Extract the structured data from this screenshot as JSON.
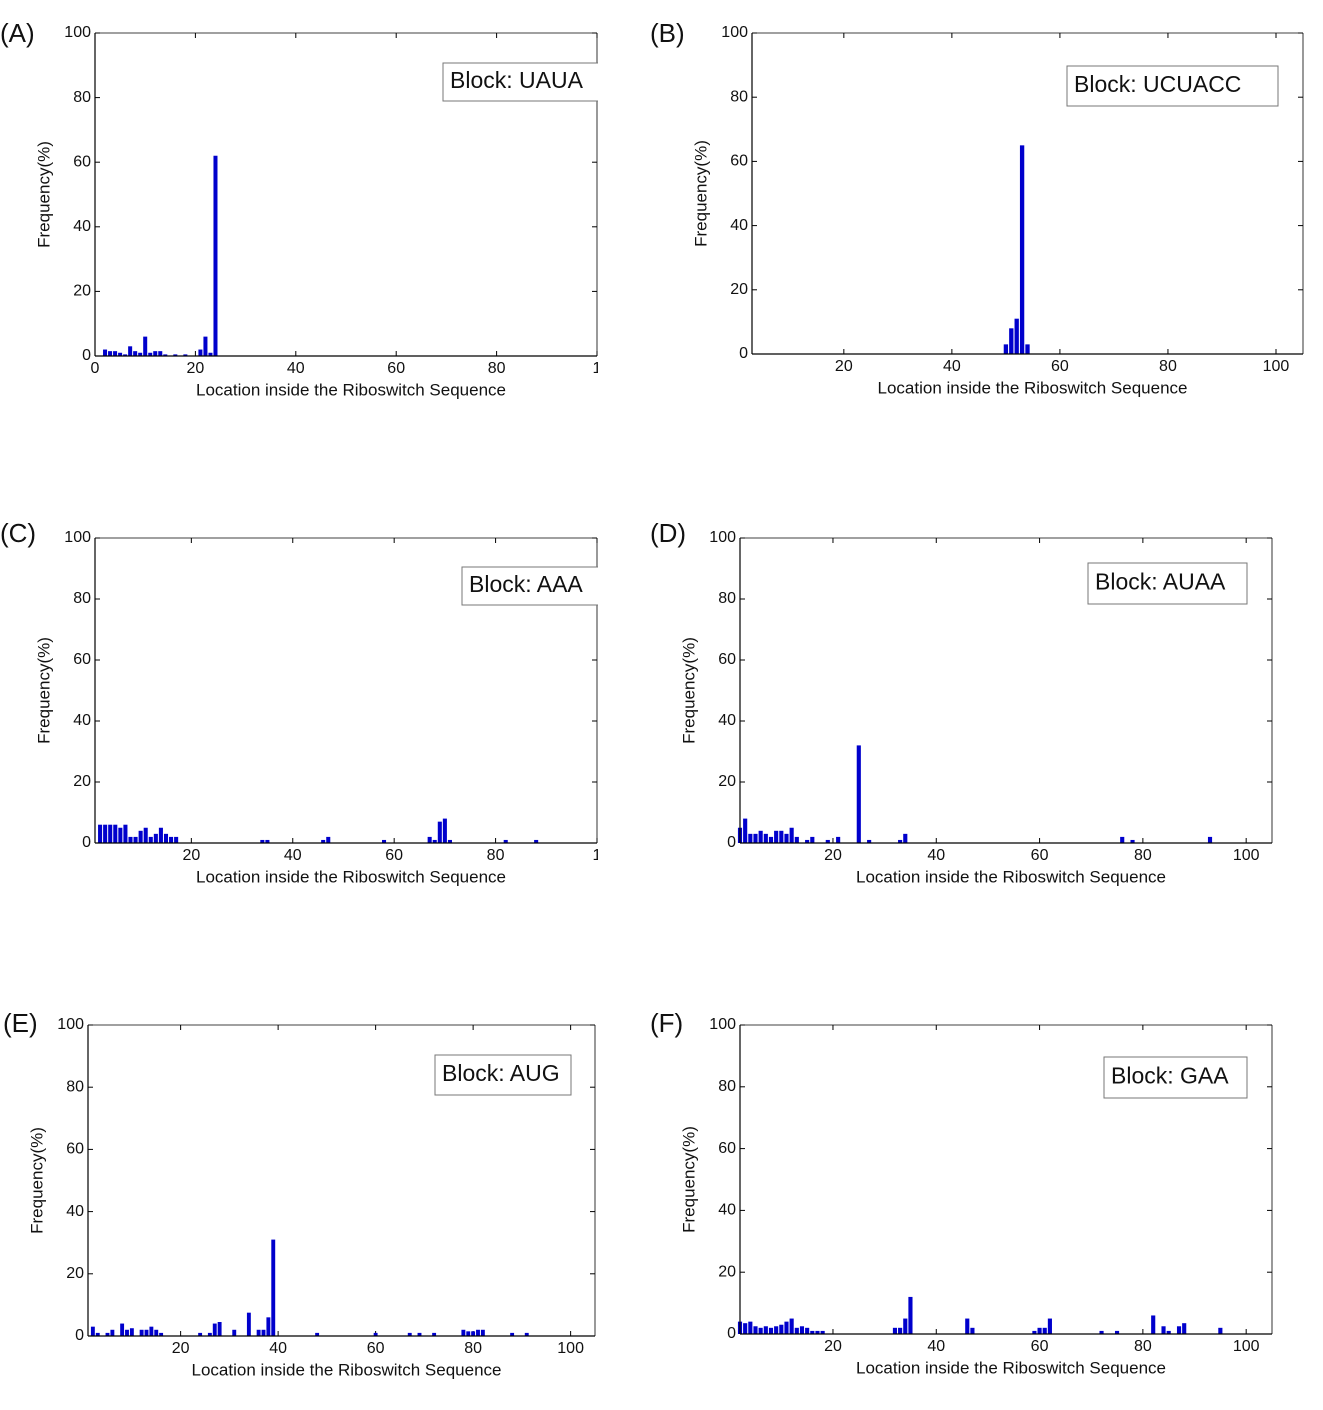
{
  "chart_data": [
    {
      "type": "bar",
      "panel_label": "(A)",
      "annotation": "Block: UAUA",
      "xlabel": "Location inside the Riboswitch Sequence",
      "ylabel": "Frequency(%)",
      "color": "#0000cc",
      "xlim": [
        0,
        100
      ],
      "xticks": [
        0,
        20,
        40,
        60,
        80,
        {
          "value": 100,
          "label": "1"
        }
      ],
      "ylim": [
        0,
        100
      ],
      "yticks": [
        0,
        20,
        40,
        60,
        80,
        100
      ],
      "x": [
        2,
        3,
        4,
        5,
        6,
        7,
        8,
        9,
        10,
        11,
        12,
        13,
        14,
        16,
        18,
        21,
        22,
        23,
        24
      ],
      "values": [
        2,
        1.5,
        1.5,
        1,
        0.5,
        3,
        1.5,
        1,
        6,
        1,
        1.5,
        1.5,
        0.5,
        0.5,
        0.5,
        2,
        6,
        1,
        62
      ]
    },
    {
      "type": "bar",
      "panel_label": "(B)",
      "annotation": "Block: UCUACC",
      "xlabel": "Location inside the Riboswitch Sequence",
      "ylabel": "Frequency(%)",
      "color": "#0000cc",
      "xlim": [
        3,
        105
      ],
      "xticks": [
        20,
        40,
        60,
        80,
        100
      ],
      "ylim": [
        0,
        100
      ],
      "yticks": [
        0,
        20,
        40,
        60,
        80,
        100
      ],
      "x": [
        50,
        51,
        52,
        53,
        54
      ],
      "values": [
        3,
        8,
        11,
        65,
        3
      ]
    },
    {
      "type": "bar",
      "panel_label": "(C)",
      "annotation": "Block: AAA",
      "xlabel": "Location inside the Riboswitch Sequence",
      "ylabel": "Frequency(%)",
      "color": "#0000cc",
      "xlim": [
        1,
        100
      ],
      "xticks": [
        20,
        40,
        60,
        80,
        {
          "value": 100,
          "label": "1"
        }
      ],
      "ylim": [
        0,
        100
      ],
      "yticks": [
        0,
        20,
        40,
        60,
        80,
        100
      ],
      "x": [
        2,
        3,
        4,
        5,
        6,
        7,
        8,
        9,
        10,
        11,
        12,
        13,
        14,
        15,
        16,
        17,
        34,
        35,
        46,
        47,
        58,
        67,
        68,
        69,
        70,
        71,
        82,
        88
      ],
      "values": [
        6,
        6,
        6,
        6,
        5,
        6,
        2,
        2,
        4,
        5,
        2,
        3,
        5,
        3,
        2,
        2,
        1,
        1,
        1,
        2,
        1,
        2,
        1,
        7,
        8,
        1,
        1,
        1
      ]
    },
    {
      "type": "bar",
      "panel_label": "(D)",
      "annotation": "Block: AUAA",
      "xlabel": "Location inside the Riboswitch Sequence",
      "ylabel": "Frequency(%)",
      "color": "#0000cc",
      "xlim": [
        2,
        105
      ],
      "xticks": [
        20,
        40,
        60,
        80,
        100
      ],
      "ylim": [
        0,
        100
      ],
      "yticks": [
        0,
        20,
        40,
        60,
        80,
        100
      ],
      "x": [
        2,
        3,
        4,
        5,
        6,
        7,
        8,
        9,
        10,
        11,
        12,
        13,
        15,
        16,
        19,
        21,
        25,
        27,
        33,
        34,
        76,
        78,
        93
      ],
      "values": [
        5,
        8,
        3,
        3,
        4,
        3,
        2,
        4,
        4,
        3,
        5,
        2,
        1,
        2,
        1,
        2,
        32,
        1,
        1,
        3,
        2,
        1,
        2
      ]
    },
    {
      "type": "bar",
      "panel_label": "(E)",
      "annotation": "Block: AUG",
      "xlabel": "Location inside the Riboswitch Sequence",
      "ylabel": "Frequency(%)",
      "color": "#0000cc",
      "xlim": [
        1,
        105
      ],
      "xticks": [
        20,
        40,
        60,
        80,
        100
      ],
      "ylim": [
        0,
        100
      ],
      "yticks": [
        0,
        20,
        40,
        60,
        80,
        100
      ],
      "x": [
        2,
        3,
        5,
        6,
        8,
        9,
        10,
        12,
        13,
        14,
        15,
        16,
        24,
        26,
        27,
        28,
        31,
        34,
        36,
        37,
        38,
        39,
        48,
        60,
        67,
        69,
        72,
        78,
        79,
        80,
        81,
        82,
        88,
        91
      ],
      "values": [
        3,
        1,
        1,
        2,
        4,
        2,
        2.5,
        2,
        2,
        3,
        2,
        1,
        1,
        1,
        4,
        4.5,
        2,
        7.5,
        2,
        2,
        6,
        31,
        1,
        1,
        1,
        1,
        1,
        2,
        1.5,
        1.5,
        2,
        2,
        1,
        1
      ]
    },
    {
      "type": "bar",
      "panel_label": "(F)",
      "annotation": "Block: GAA",
      "xlabel": "Location inside the Riboswitch Sequence",
      "ylabel": "Frequency(%)",
      "color": "#0000cc",
      "xlim": [
        2,
        105
      ],
      "xticks": [
        20,
        40,
        60,
        80,
        100
      ],
      "ylim": [
        0,
        100
      ],
      "yticks": [
        0,
        20,
        40,
        60,
        80,
        100
      ],
      "x": [
        2,
        3,
        4,
        5,
        6,
        7,
        8,
        9,
        10,
        11,
        12,
        13,
        14,
        15,
        16,
        17,
        18,
        32,
        33,
        34,
        35,
        46,
        47,
        59,
        60,
        61,
        62,
        72,
        75,
        82,
        84,
        85,
        87,
        88,
        95
      ],
      "values": [
        4,
        3.5,
        4,
        2.5,
        2,
        2.5,
        2,
        2.5,
        3,
        4,
        5,
        2,
        2.5,
        2,
        1,
        1,
        1,
        2,
        2,
        5,
        12,
        5,
        2,
        1,
        2,
        2,
        5,
        1,
        1,
        6,
        2.5,
        1,
        2.5,
        3.5,
        2
      ]
    }
  ]
}
